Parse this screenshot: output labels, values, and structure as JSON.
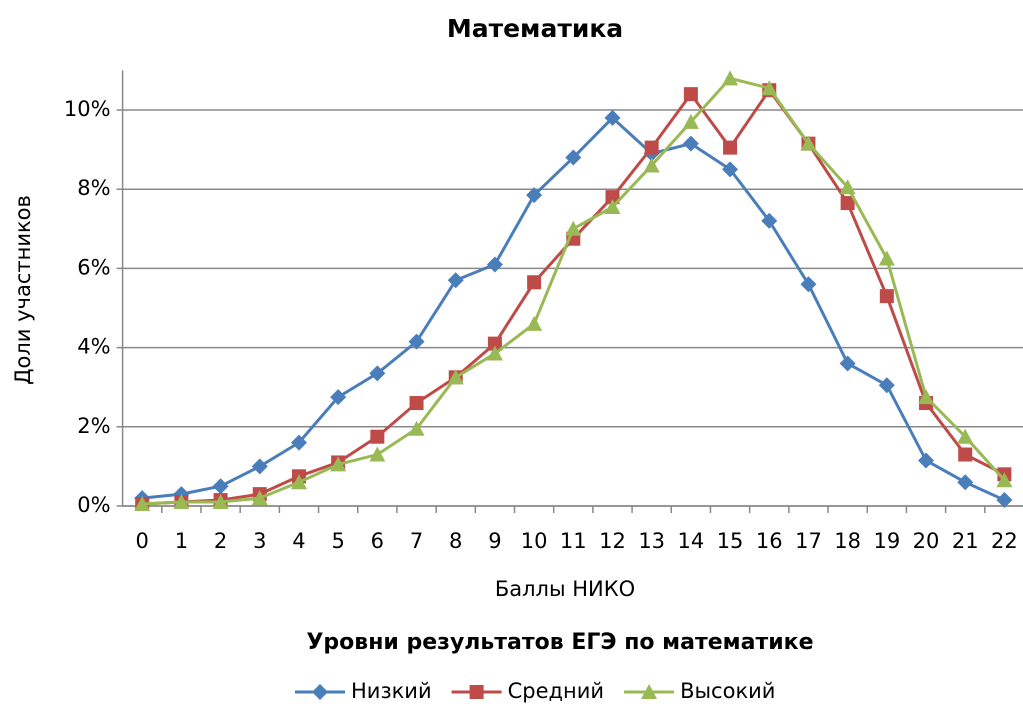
{
  "chart_data": {
    "type": "line",
    "title": "Математика",
    "y_label": "Доли участников",
    "x_label": "Баллы НИКО",
    "legend_title": "Уровни результатов ЕГЭ по математике",
    "legend": "bottom",
    "grid": true,
    "categories": [
      "0",
      "1",
      "2",
      "3",
      "4",
      "5",
      "6",
      "7",
      "8",
      "9",
      "10",
      "11",
      "12",
      "13",
      "14",
      "15",
      "16",
      "17",
      "18",
      "19",
      "20",
      "21",
      "22"
    ],
    "ylim": [
      0,
      11
    ],
    "yticks": [
      {
        "value": 0,
        "label": "0%"
      },
      {
        "value": 2,
        "label": "2%"
      },
      {
        "value": 4,
        "label": "4%"
      },
      {
        "value": 6,
        "label": "6%"
      },
      {
        "value": 8,
        "label": "8%"
      },
      {
        "value": 10,
        "label": "10%"
      }
    ],
    "series": [
      {
        "name": "Низкий",
        "color": "#4a7ebb",
        "marker": "diamond",
        "values": [
          0.2,
          0.3,
          0.5,
          1.0,
          1.6,
          2.75,
          3.35,
          4.15,
          5.7,
          6.1,
          7.85,
          8.8,
          9.8,
          8.9,
          9.15,
          8.5,
          7.2,
          5.6,
          3.6,
          3.05,
          1.15,
          0.6,
          0.15
        ]
      },
      {
        "name": "Средний",
        "color": "#be4b48",
        "marker": "square",
        "values": [
          0.05,
          0.1,
          0.15,
          0.3,
          0.75,
          1.1,
          1.75,
          2.6,
          3.25,
          4.1,
          5.65,
          6.75,
          7.8,
          9.05,
          10.4,
          9.05,
          10.5,
          9.15,
          7.65,
          5.3,
          2.6,
          1.3,
          0.8
        ]
      },
      {
        "name": "Высокий",
        "color": "#98b954",
        "marker": "triangle",
        "values": [
          0.05,
          0.1,
          0.1,
          0.2,
          0.6,
          1.05,
          1.3,
          1.95,
          3.25,
          3.85,
          4.6,
          7.0,
          7.55,
          8.6,
          9.7,
          10.8,
          10.55,
          9.15,
          8.05,
          6.25,
          2.75,
          1.75,
          0.65
        ]
      }
    ]
  }
}
